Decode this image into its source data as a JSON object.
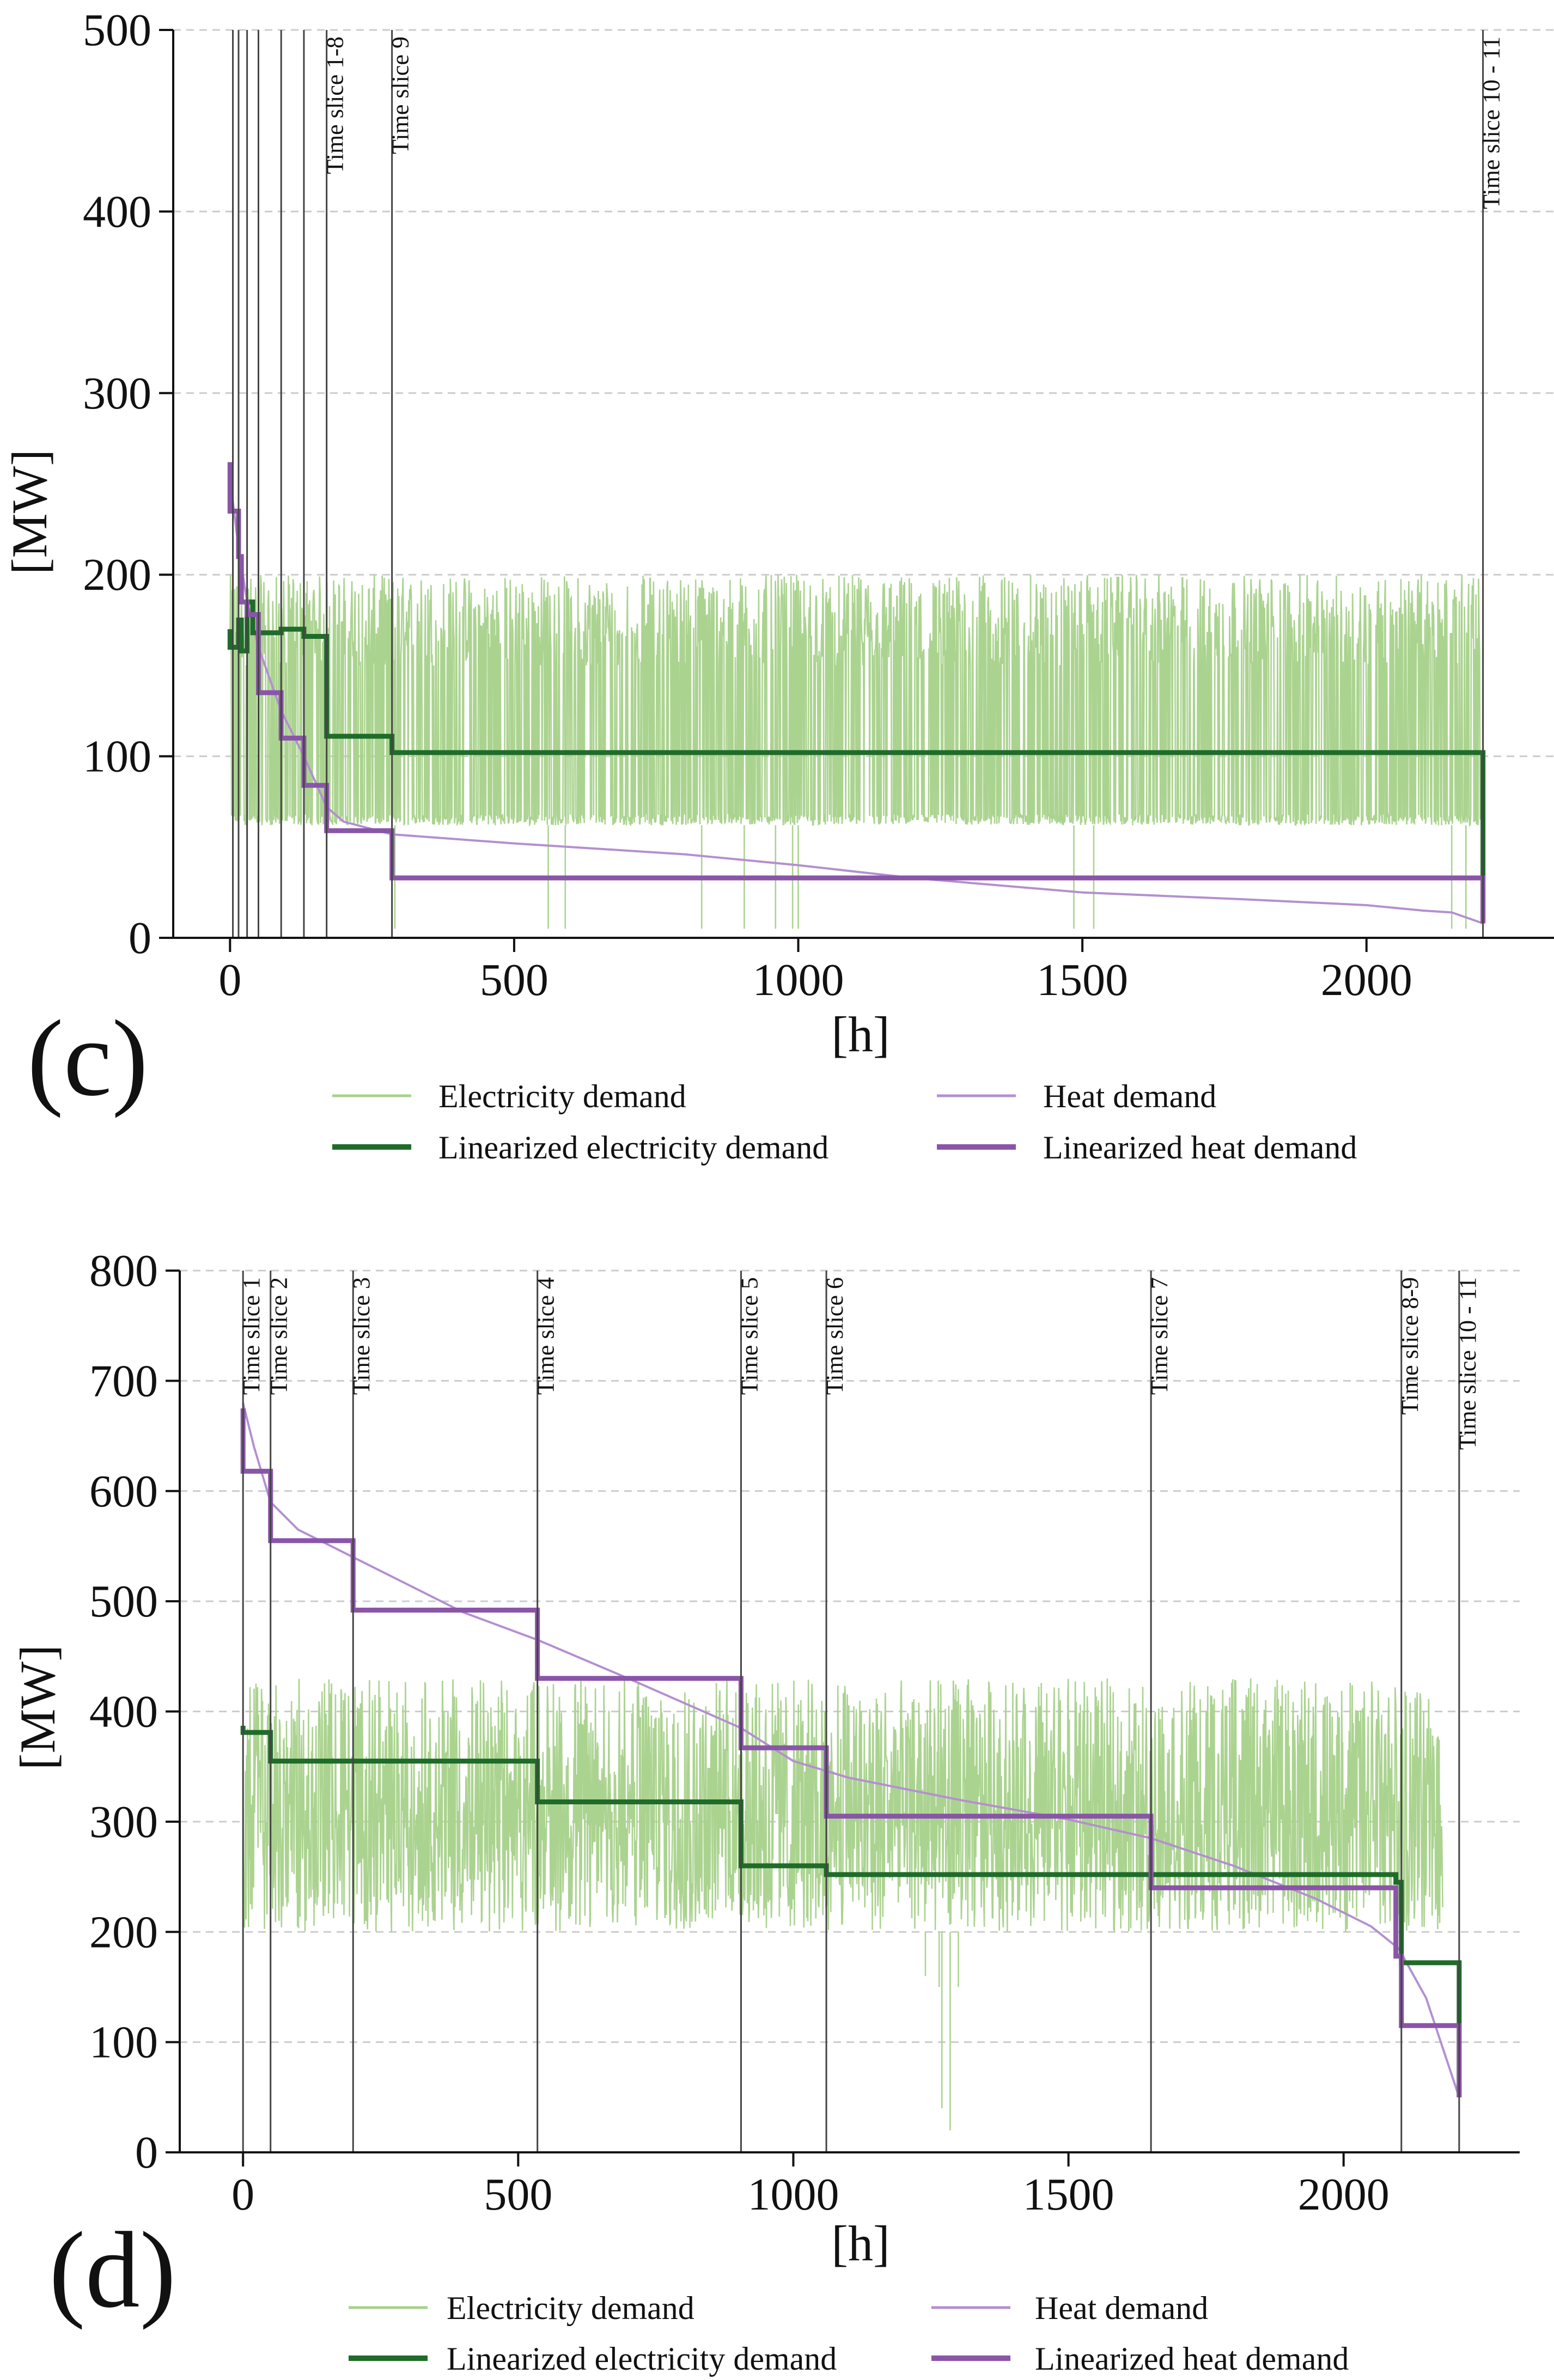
{
  "figure": {
    "background": "#ffffff"
  },
  "colors": {
    "electricity": "#a6d18a",
    "linear_electricity": "#1f6b2a",
    "heat": "#b48fd0",
    "linear_heat": "#8a55a8",
    "slice_line": "#444444",
    "grid": "#cccccc"
  },
  "legend": {
    "electricity": "Electricity demand",
    "heat": "Heat demand",
    "linear_electricity": "Linearized electricity demand",
    "linear_heat": "Linearized heat demand"
  },
  "chart_data": [
    {
      "panel": "(c)",
      "type": "line",
      "xlabel": "[h]",
      "ylabel": "[MW]",
      "xlim": [
        -100,
        2330
      ],
      "ylim": [
        0,
        500
      ],
      "xticks": [
        0,
        500,
        1000,
        1500,
        2000
      ],
      "yticks": [
        0,
        100,
        200,
        300,
        400,
        500
      ],
      "grid": "y-dashed",
      "time_slices": [
        {
          "x": 5,
          "label": ""
        },
        {
          "x": 15,
          "label": ""
        },
        {
          "x": 30,
          "label": ""
        },
        {
          "x": 50,
          "label": ""
        },
        {
          "x": 90,
          "label": ""
        },
        {
          "x": 130,
          "label": ""
        },
        {
          "x": 170,
          "label": "Time slice 1-8"
        },
        {
          "x": 285,
          "label": "Time slice 9"
        },
        {
          "x": 2205,
          "label": "Time slice 10 - 11"
        }
      ],
      "series": [
        {
          "name": "Linearized electricity demand",
          "points": [
            [
              0,
              170
            ],
            [
              0,
              160
            ],
            [
              15,
              160
            ],
            [
              15,
              175
            ],
            [
              20,
              175
            ],
            [
              20,
              158
            ],
            [
              30,
              158
            ],
            [
              30,
              185
            ],
            [
              40,
              185
            ],
            [
              40,
              168
            ],
            [
              90,
              168
            ],
            [
              90,
              170
            ],
            [
              130,
              170
            ],
            [
              130,
              166
            ],
            [
              170,
              166
            ],
            [
              170,
              111
            ],
            [
              285,
              111
            ],
            [
              285,
              102
            ],
            [
              2205,
              102
            ],
            [
              2205,
              8
            ]
          ]
        },
        {
          "name": "Linearized heat demand",
          "points": [
            [
              0,
              262
            ],
            [
              0,
              235
            ],
            [
              15,
              235
            ],
            [
              15,
              210
            ],
            [
              20,
              210
            ],
            [
              20,
              185
            ],
            [
              30,
              185
            ],
            [
              30,
              178
            ],
            [
              50,
              178
            ],
            [
              50,
              135
            ],
            [
              90,
              135
            ],
            [
              90,
              110
            ],
            [
              130,
              110
            ],
            [
              130,
              84
            ],
            [
              170,
              84
            ],
            [
              170,
              59
            ],
            [
              285,
              59
            ],
            [
              285,
              33
            ],
            [
              2205,
              33
            ],
            [
              2205,
              8
            ]
          ]
        },
        {
          "name": "Heat demand",
          "points": [
            [
              0,
              262
            ],
            [
              5,
              240
            ],
            [
              15,
              215
            ],
            [
              30,
              185
            ],
            [
              50,
              160
            ],
            [
              90,
              125
            ],
            [
              130,
              100
            ],
            [
              170,
              72
            ],
            [
              200,
              64
            ],
            [
              285,
              57
            ],
            [
              500,
              52
            ],
            [
              800,
              46
            ],
            [
              1000,
              40
            ],
            [
              1200,
              33
            ],
            [
              1500,
              25
            ],
            [
              1800,
              21
            ],
            [
              2000,
              18
            ],
            [
              2100,
              15
            ],
            [
              2150,
              14
            ],
            [
              2205,
              8
            ]
          ]
        },
        {
          "name": "Electricity demand",
          "xrange": [
            0,
            2200
          ],
          "low_band": [
            62,
            68
          ],
          "high_band": [
            150,
            200
          ],
          "dips": [
            [
              290,
              5
            ],
            [
              560,
              5
            ],
            [
              590,
              5
            ],
            [
              830,
              5
            ],
            [
              905,
              5
            ],
            [
              960,
              5
            ],
            [
              990,
              5
            ],
            [
              1000,
              5
            ],
            [
              1485,
              5
            ],
            [
              1520,
              5
            ],
            [
              2150,
              5
            ],
            [
              2175,
              5
            ]
          ]
        }
      ]
    },
    {
      "panel": "(d)",
      "type": "line",
      "xlabel": "[h]",
      "ylabel": "[MW]",
      "xlim": [
        -115,
        2320
      ],
      "ylim": [
        0,
        800
      ],
      "xticks": [
        0,
        500,
        1000,
        1500,
        2000
      ],
      "yticks": [
        0,
        100,
        200,
        300,
        400,
        500,
        600,
        700,
        800
      ],
      "grid": "y-dashed",
      "time_slices": [
        {
          "x": 0,
          "label": "Time slice 1"
        },
        {
          "x": 50,
          "label": "Time slice 2"
        },
        {
          "x": 200,
          "label": "Time slice 3"
        },
        {
          "x": 535,
          "label": "Time slice 4"
        },
        {
          "x": 905,
          "label": "Time slice 5"
        },
        {
          "x": 1060,
          "label": "Time slice 6"
        },
        {
          "x": 1650,
          "label": "Time slice 7"
        },
        {
          "x": 2105,
          "label": "Time slice 8-9"
        },
        {
          "x": 2210,
          "label": "Time slice 10 - 11"
        }
      ],
      "series": [
        {
          "name": "Linearized electricity demand",
          "points": [
            [
              0,
              387
            ],
            [
              0,
              381
            ],
            [
              50,
              381
            ],
            [
              50,
              355
            ],
            [
              200,
              355
            ],
            [
              200,
              355
            ],
            [
              535,
              355
            ],
            [
              535,
              318
            ],
            [
              905,
              318
            ],
            [
              905,
              260
            ],
            [
              1060,
              260
            ],
            [
              1060,
              252
            ],
            [
              1650,
              252
            ],
            [
              1650,
              252
            ],
            [
              2095,
              252
            ],
            [
              2095,
              245
            ],
            [
              2105,
              245
            ],
            [
              2105,
              172
            ],
            [
              2210,
              172
            ],
            [
              2210,
              50
            ]
          ]
        },
        {
          "name": "Linearized heat demand",
          "points": [
            [
              0,
              675
            ],
            [
              0,
              618
            ],
            [
              50,
              618
            ],
            [
              50,
              555
            ],
            [
              200,
              555
            ],
            [
              200,
              492
            ],
            [
              535,
              492
            ],
            [
              535,
              430
            ],
            [
              905,
              430
            ],
            [
              905,
              367
            ],
            [
              1060,
              367
            ],
            [
              1060,
              305
            ],
            [
              1650,
              305
            ],
            [
              1650,
              240
            ],
            [
              2095,
              240
            ],
            [
              2095,
              178
            ],
            [
              2105,
              178
            ],
            [
              2105,
              115
            ],
            [
              2210,
              115
            ],
            [
              2210,
              50
            ]
          ]
        },
        {
          "name": "Heat demand",
          "points": [
            [
              0,
              680
            ],
            [
              20,
              640
            ],
            [
              50,
              590
            ],
            [
              100,
              565
            ],
            [
              200,
              540
            ],
            [
              300,
              515
            ],
            [
              400,
              490
            ],
            [
              535,
              465
            ],
            [
              700,
              430
            ],
            [
              905,
              385
            ],
            [
              1000,
              355
            ],
            [
              1100,
              340
            ],
            [
              1300,
              320
            ],
            [
              1500,
              302
            ],
            [
              1650,
              285
            ],
            [
              1800,
              260
            ],
            [
              1950,
              230
            ],
            [
              2050,
              205
            ],
            [
              2100,
              185
            ],
            [
              2150,
              140
            ],
            [
              2200,
              65
            ],
            [
              2210,
              50
            ]
          ]
        },
        {
          "name": "Electricity demand",
          "xrange": [
            0,
            2180
          ],
          "low_band": [
            200,
            300
          ],
          "high_band": [
            300,
            430
          ],
          "dips": [
            [
              1270,
              40
            ],
            [
              1285,
              20
            ],
            [
              1265,
              150
            ],
            [
              1240,
              160
            ],
            [
              1300,
              150
            ]
          ]
        }
      ]
    }
  ]
}
